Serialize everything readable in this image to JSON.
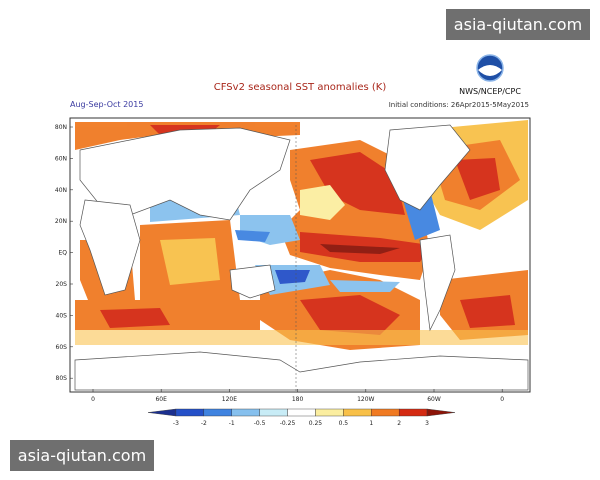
{
  "watermark_top": "asia-qiutan.com",
  "watermark_bottom": "asia-qiutan.com",
  "logo_text": "NWS/NCEP/CPC",
  "title": "CFSv2 seasonal SST anomalies (K)",
  "period": "Aug-Sep-Oct 2015",
  "initial_conditions": "Initial conditions: 26Apr2015-5May2015",
  "lat_labels": [
    "80N",
    "60N",
    "40N",
    "20N",
    "EQ",
    "20S",
    "40S",
    "60S",
    "80S"
  ],
  "lon_labels": [
    "0",
    "60E",
    "120E",
    "180",
    "120W",
    "60W",
    "0"
  ],
  "colorbar": {
    "labels": [
      "-3",
      "-2",
      "-1",
      "-0.5",
      "-0.25",
      "0.25",
      "0.5",
      "1",
      "2",
      "3"
    ],
    "colors": [
      "#1b2f8f",
      "#2450c8",
      "#3f83e0",
      "#86c0ee",
      "#c8ecf6",
      "#ffffff",
      "#fbeea0",
      "#f8c048",
      "#f07a22",
      "#d42a12",
      "#8c1408"
    ]
  }
}
